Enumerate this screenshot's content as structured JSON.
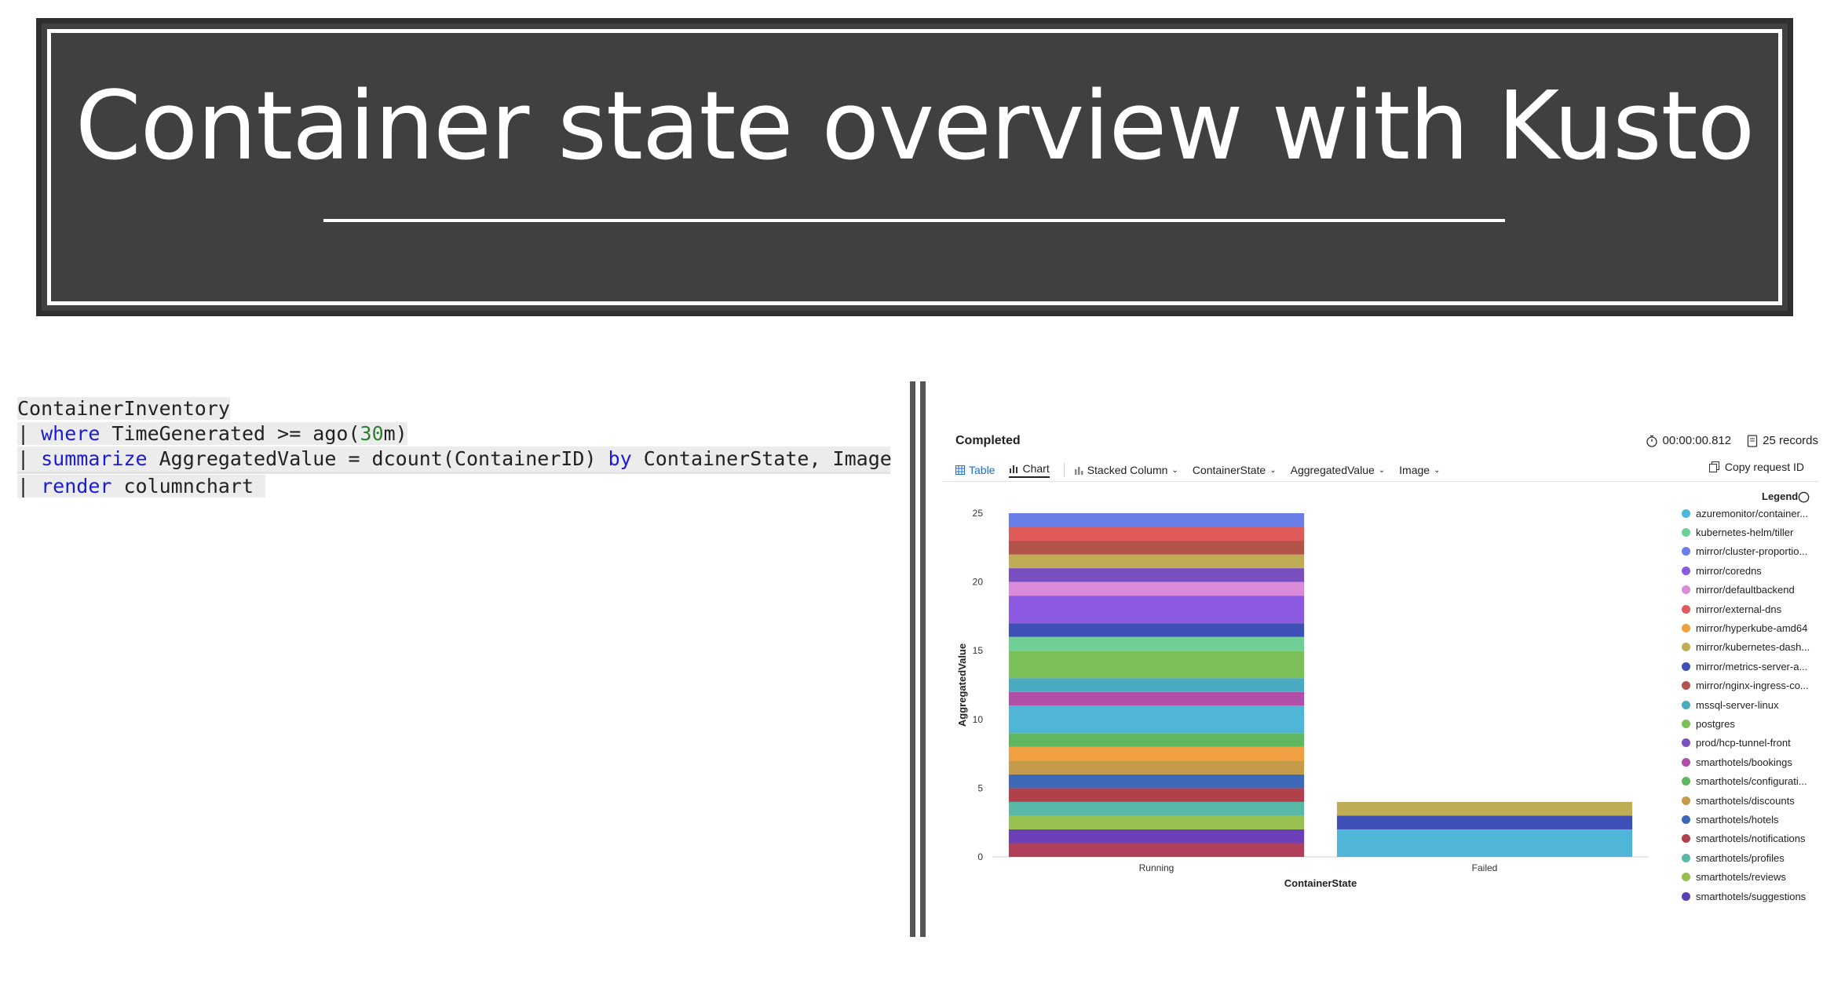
{
  "slide": {
    "title": "Container state overview with Kusto"
  },
  "query": {
    "line1": "ContainerInventory",
    "line2_pipe": "| ",
    "line2_kw": "where",
    "line2_a": " TimeGenerated >= ago(",
    "line2_num": "30",
    "line2_b": "m)",
    "line3_pipe": "| ",
    "line3_kw": "summarize",
    "line3_a": " AggregatedValue = dcount(ContainerID) ",
    "line3_kw2": "by",
    "line3_b": " ContainerState, Image",
    "line4_pipe": "| ",
    "line4_kw": "render",
    "line4_a": " columnchart "
  },
  "results": {
    "status": "Completed",
    "duration": "00:00:00.812",
    "records": "25 records",
    "tabs": [
      "Table",
      "Chart"
    ],
    "chart_type": "Stacked Column",
    "x_column": "ContainerState",
    "y_column": "AggregatedValue",
    "split_column": "Image",
    "copy_request": "Copy request ID",
    "legend_title": "Legend"
  },
  "icons": {
    "timer": "timer-icon",
    "records": "records-icon",
    "table": "table-icon",
    "chart": "chart-icon",
    "copy": "copy-icon",
    "chevron": "chevron-down-icon"
  },
  "legend_entries": [
    {
      "name": "azuremonitor/container...",
      "color": "#4fb6d8"
    },
    {
      "name": "kubernetes-helm/tiller",
      "color": "#6fcf97"
    },
    {
      "name": "mirror/cluster-proportio...",
      "color": "#6a7ee8"
    },
    {
      "name": "mirror/coredns",
      "color": "#8b5ae0"
    },
    {
      "name": "mirror/defaultbackend",
      "color": "#d98ad8"
    },
    {
      "name": "mirror/external-dns",
      "color": "#e05a5a"
    },
    {
      "name": "mirror/hyperkube-amd64",
      "color": "#f0a040"
    },
    {
      "name": "mirror/kubernetes-dash...",
      "color": "#bfad55"
    },
    {
      "name": "mirror/metrics-server-a...",
      "color": "#3e4fb8"
    },
    {
      "name": "mirror/nginx-ingress-co...",
      "color": "#b3544a"
    },
    {
      "name": "mssql-server-linux",
      "color": "#4aaac0"
    },
    {
      "name": "postgres",
      "color": "#7cc05a"
    },
    {
      "name": "prod/hcp-tunnel-front",
      "color": "#7a4fc0"
    },
    {
      "name": "smarthotels/bookings",
      "color": "#b04fa8"
    },
    {
      "name": "smarthotels/configurati...",
      "color": "#5fb85f"
    },
    {
      "name": "smarthotels/discounts",
      "color": "#c49b4a"
    },
    {
      "name": "smarthotels/hotels",
      "color": "#3e68b8"
    },
    {
      "name": "smarthotels/notifications",
      "color": "#b0404a"
    },
    {
      "name": "smarthotels/profiles",
      "color": "#5ab8a8"
    },
    {
      "name": "smarthotels/reviews",
      "color": "#98c050"
    },
    {
      "name": "smarthotels/suggestions",
      "color": "#5a40b0"
    }
  ],
  "chart_data": {
    "type": "bar",
    "stacked": true,
    "xlabel": "ContainerState",
    "ylabel": "AggregatedValue",
    "categories": [
      "Running",
      "Failed"
    ],
    "ylim": [
      0,
      25
    ],
    "yticks": [
      0,
      5,
      10,
      15,
      20,
      25
    ],
    "legend_position": "right",
    "stacks": [
      {
        "category": "Running",
        "segments": [
          {
            "value": 1,
            "color": "#b0405a"
          },
          {
            "value": 1,
            "color": "#6a3fb8"
          },
          {
            "value": 1,
            "color": "#98c050"
          },
          {
            "value": 1,
            "color": "#5ab8a8"
          },
          {
            "value": 1,
            "color": "#b0404a"
          },
          {
            "value": 1,
            "color": "#3e68b8"
          },
          {
            "value": 1,
            "color": "#c49b4a"
          },
          {
            "value": 1,
            "color": "#f0a040"
          },
          {
            "value": 1,
            "color": "#5fb85f"
          },
          {
            "value": 2,
            "color": "#4fb6d8"
          },
          {
            "value": 1,
            "color": "#b04fa8"
          },
          {
            "value": 1,
            "color": "#4aaac0"
          },
          {
            "value": 2,
            "color": "#7cc05a"
          },
          {
            "value": 1,
            "color": "#6fcf97"
          },
          {
            "value": 1,
            "color": "#3e4fb8"
          },
          {
            "value": 2,
            "color": "#8b5ae0"
          },
          {
            "value": 1,
            "color": "#d98ad8"
          },
          {
            "value": 1,
            "color": "#7a4fc0"
          },
          {
            "value": 1,
            "color": "#bfad55"
          },
          {
            "value": 1,
            "color": "#b3544a"
          },
          {
            "value": 1,
            "color": "#e05a5a"
          },
          {
            "value": 1,
            "color": "#6a7ee8"
          }
        ]
      },
      {
        "category": "Failed",
        "segments": [
          {
            "value": 2,
            "color": "#4fb6d8"
          },
          {
            "value": 1,
            "color": "#3e4fb8"
          },
          {
            "value": 1,
            "color": "#bfad55"
          }
        ]
      }
    ]
  }
}
